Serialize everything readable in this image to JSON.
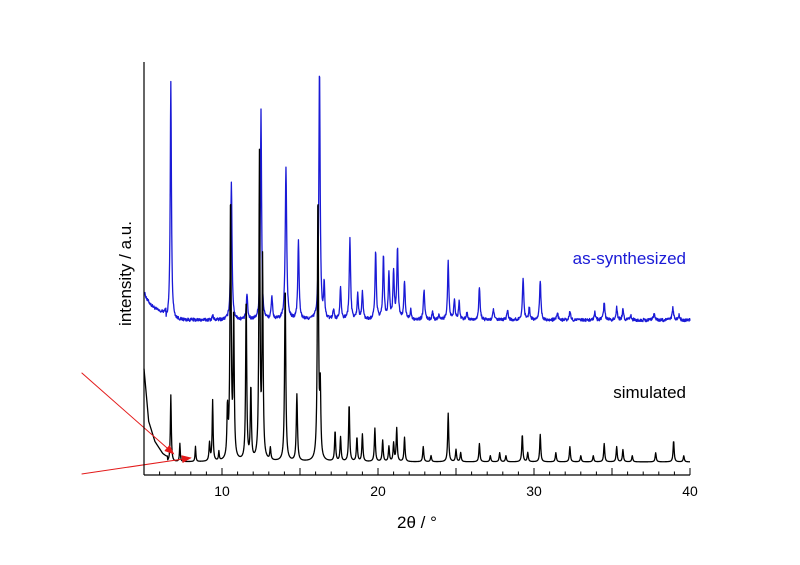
{
  "chart_data": {
    "type": "line",
    "title": "",
    "xlabel": "2θ / °",
    "ylabel": "intensity / a.u.",
    "xlim": [
      5,
      40
    ],
    "ylim": [
      0,
      1
    ],
    "x_ticks": [
      10,
      20,
      30,
      40
    ],
    "x_tick_labels": [
      "10",
      "20",
      "30",
      "40"
    ],
    "grid": false,
    "y_tick_labels_shown": false,
    "series": [
      {
        "name": "as-synthesized",
        "color": "#1a1ad6",
        "baseline": 0.37,
        "noise": 0.004,
        "points": [
          [
            5.0,
            0.44
          ],
          [
            5.2,
            0.42
          ],
          [
            5.5,
            0.405
          ],
          [
            6.0,
            0.39
          ],
          [
            6.4,
            0.385
          ]
        ],
        "peaks": [
          [
            6.72,
            0.95,
            0.045
          ],
          [
            9.4,
            0.02,
            0.04
          ],
          [
            10.6,
            0.55,
            0.05
          ],
          [
            11.6,
            0.1,
            0.05
          ],
          [
            12.5,
            0.84,
            0.045
          ],
          [
            13.2,
            0.09,
            0.05
          ],
          [
            14.1,
            0.61,
            0.055
          ],
          [
            14.9,
            0.31,
            0.05
          ],
          [
            16.25,
            1.0,
            0.05
          ],
          [
            16.55,
            0.14,
            0.04
          ],
          [
            17.15,
            0.04,
            0.05
          ],
          [
            17.6,
            0.13,
            0.05
          ],
          [
            18.2,
            0.32,
            0.05
          ],
          [
            18.7,
            0.1,
            0.05
          ],
          [
            19.0,
            0.11,
            0.05
          ],
          [
            19.85,
            0.27,
            0.05
          ],
          [
            20.35,
            0.25,
            0.05
          ],
          [
            20.7,
            0.18,
            0.05
          ],
          [
            21.0,
            0.19,
            0.05
          ],
          [
            21.25,
            0.28,
            0.05
          ],
          [
            21.7,
            0.15,
            0.05
          ],
          [
            22.1,
            0.04,
            0.05
          ],
          [
            22.95,
            0.12,
            0.05
          ],
          [
            23.5,
            0.03,
            0.05
          ],
          [
            23.9,
            0.02,
            0.05
          ],
          [
            24.5,
            0.23,
            0.05
          ],
          [
            24.9,
            0.08,
            0.05
          ],
          [
            25.2,
            0.07,
            0.05
          ],
          [
            25.7,
            0.03,
            0.05
          ],
          [
            26.5,
            0.13,
            0.05
          ],
          [
            27.4,
            0.04,
            0.05
          ],
          [
            28.3,
            0.04,
            0.05
          ],
          [
            29.3,
            0.17,
            0.05
          ],
          [
            29.7,
            0.05,
            0.05
          ],
          [
            30.4,
            0.16,
            0.05
          ],
          [
            31.5,
            0.03,
            0.05
          ],
          [
            32.3,
            0.035,
            0.05
          ],
          [
            33.9,
            0.03,
            0.05
          ],
          [
            34.5,
            0.07,
            0.05
          ],
          [
            35.3,
            0.05,
            0.05
          ],
          [
            35.7,
            0.04,
            0.05
          ],
          [
            36.2,
            0.02,
            0.05
          ],
          [
            37.7,
            0.03,
            0.05
          ],
          [
            38.9,
            0.05,
            0.05
          ],
          [
            39.3,
            0.02,
            0.05
          ]
        ]
      },
      {
        "name": "simulated",
        "color": "#000000",
        "baseline": 0.02,
        "noise": 0,
        "points": [
          [
            5.0,
            0.25
          ],
          [
            5.3,
            0.12
          ],
          [
            5.7,
            0.07
          ],
          [
            6.2,
            0.04
          ],
          [
            6.5,
            0.03
          ]
        ],
        "peaks": [
          [
            6.72,
            0.22,
            0.035
          ],
          [
            7.3,
            0.06,
            0.03
          ],
          [
            8.3,
            0.05,
            0.03
          ],
          [
            9.2,
            0.06,
            0.04
          ],
          [
            9.4,
            0.2,
            0.035
          ],
          [
            9.8,
            0.03,
            0.03
          ],
          [
            10.35,
            0.16,
            0.04
          ],
          [
            10.55,
            0.86,
            0.045
          ],
          [
            10.75,
            0.47,
            0.04
          ],
          [
            11.55,
            0.54,
            0.04
          ],
          [
            11.85,
            0.24,
            0.04
          ],
          [
            12.4,
            1.0,
            0.04
          ],
          [
            12.6,
            0.65,
            0.04
          ],
          [
            13.1,
            0.04,
            0.04
          ],
          [
            14.05,
            0.58,
            0.045
          ],
          [
            14.8,
            0.22,
            0.045
          ],
          [
            16.15,
            0.87,
            0.045
          ],
          [
            16.3,
            0.22,
            0.04
          ],
          [
            17.25,
            0.1,
            0.04
          ],
          [
            17.6,
            0.08,
            0.04
          ],
          [
            18.15,
            0.19,
            0.04
          ],
          [
            18.65,
            0.08,
            0.04
          ],
          [
            19.0,
            0.09,
            0.04
          ],
          [
            19.8,
            0.11,
            0.04
          ],
          [
            20.3,
            0.07,
            0.04
          ],
          [
            20.7,
            0.05,
            0.04
          ],
          [
            21.0,
            0.06,
            0.04
          ],
          [
            21.2,
            0.11,
            0.04
          ],
          [
            21.7,
            0.08,
            0.04
          ],
          [
            22.9,
            0.05,
            0.04
          ],
          [
            23.4,
            0.02,
            0.04
          ],
          [
            24.5,
            0.16,
            0.04
          ],
          [
            25.0,
            0.04,
            0.04
          ],
          [
            25.3,
            0.03,
            0.04
          ],
          [
            26.5,
            0.06,
            0.04
          ],
          [
            27.2,
            0.02,
            0.04
          ],
          [
            27.8,
            0.03,
            0.04
          ],
          [
            28.2,
            0.02,
            0.04
          ],
          [
            29.25,
            0.09,
            0.04
          ],
          [
            29.6,
            0.03,
            0.04
          ],
          [
            30.4,
            0.09,
            0.04
          ],
          [
            31.4,
            0.03,
            0.04
          ],
          [
            32.3,
            0.05,
            0.04
          ],
          [
            33.0,
            0.02,
            0.04
          ],
          [
            33.8,
            0.02,
            0.04
          ],
          [
            34.5,
            0.06,
            0.04
          ],
          [
            35.3,
            0.05,
            0.04
          ],
          [
            35.7,
            0.04,
            0.04
          ],
          [
            36.3,
            0.02,
            0.04
          ],
          [
            37.8,
            0.03,
            0.04
          ],
          [
            38.95,
            0.07,
            0.04
          ],
          [
            39.6,
            0.02,
            0.04
          ]
        ]
      }
    ],
    "annotations": [
      {
        "type": "arrow",
        "color": "#e31a1a",
        "from": [
          1.0,
          0.24
        ],
        "to": [
          6.9,
          0.04
        ]
      },
      {
        "type": "arrow",
        "color": "#e31a1a",
        "from": [
          1.0,
          -0.01
        ],
        "to": [
          8.0,
          0.03
        ]
      }
    ]
  }
}
